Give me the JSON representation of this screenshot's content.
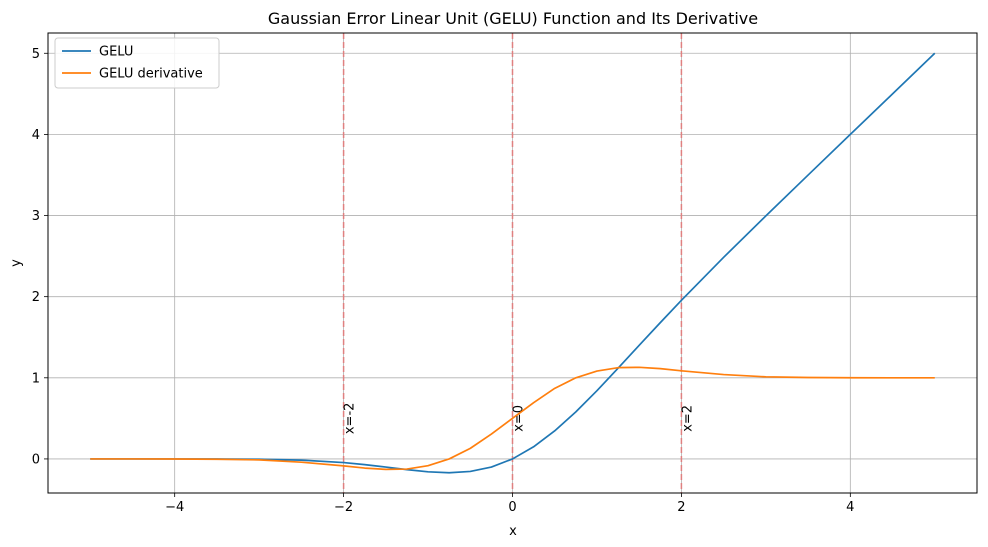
{
  "chart_data": {
    "type": "line",
    "title": "Gaussian Error Linear Unit (GELU) Function and Its Derivative",
    "xlabel": "x",
    "ylabel": "y",
    "xlim": [
      -5.5,
      5.5
    ],
    "ylim": [
      -0.42,
      5.25
    ],
    "xticks": [
      -4,
      -2,
      0,
      2,
      4
    ],
    "yticks": [
      0,
      1,
      2,
      3,
      4,
      5
    ],
    "xtick_labels": [
      "−4",
      "−2",
      "0",
      "2",
      "4"
    ],
    "ytick_labels": [
      "0",
      "1",
      "2",
      "3",
      "4",
      "5"
    ],
    "grid": true,
    "legend_position": "upper-left",
    "series": [
      {
        "name": "GELU",
        "color": "#1f77b4",
        "x": [
          -5.0,
          -4.5,
          -4.0,
          -3.5,
          -3.0,
          -2.5,
          -2.0,
          -1.75,
          -1.5,
          -1.25,
          -1.0,
          -0.75,
          -0.5,
          -0.25,
          0.0,
          0.25,
          0.5,
          0.75,
          1.0,
          1.25,
          1.5,
          1.75,
          2.0,
          2.5,
          3.0,
          3.5,
          4.0,
          4.5,
          5.0
        ],
        "y": [
          0.0,
          0.0,
          0.0,
          -0.001,
          -0.004,
          -0.015,
          -0.045,
          -0.07,
          -0.1,
          -0.132,
          -0.159,
          -0.17,
          -0.154,
          -0.1,
          0.0,
          0.15,
          0.346,
          0.58,
          0.841,
          1.118,
          1.4,
          1.68,
          1.955,
          2.485,
          2.996,
          3.499,
          4.0,
          4.5,
          5.0
        ]
      },
      {
        "name": "GELU derivative",
        "color": "#ff7f0e",
        "x": [
          -5.0,
          -4.5,
          -4.0,
          -3.5,
          -3.0,
          -2.5,
          -2.0,
          -1.75,
          -1.5,
          -1.25,
          -1.0,
          -0.75,
          -0.5,
          -0.25,
          0.0,
          0.25,
          0.5,
          0.75,
          1.0,
          1.25,
          1.5,
          1.75,
          2.0,
          2.5,
          3.0,
          3.5,
          4.0,
          4.5,
          5.0
        ],
        "y": [
          0.0,
          0.0,
          -0.001,
          -0.004,
          -0.012,
          -0.04,
          -0.086,
          -0.113,
          -0.129,
          -0.125,
          -0.083,
          0.0,
          0.13,
          0.307,
          0.5,
          0.693,
          0.87,
          1.0,
          1.083,
          1.125,
          1.129,
          1.113,
          1.086,
          1.04,
          1.012,
          1.004,
          1.001,
          1.0,
          1.0
        ]
      }
    ],
    "vlines": [
      {
        "x": -2,
        "label": "x=-2",
        "color": "#e08080"
      },
      {
        "x": 0,
        "label": "x=0",
        "color": "#e08080"
      },
      {
        "x": 2,
        "label": "x=2",
        "color": "#e08080"
      }
    ]
  }
}
